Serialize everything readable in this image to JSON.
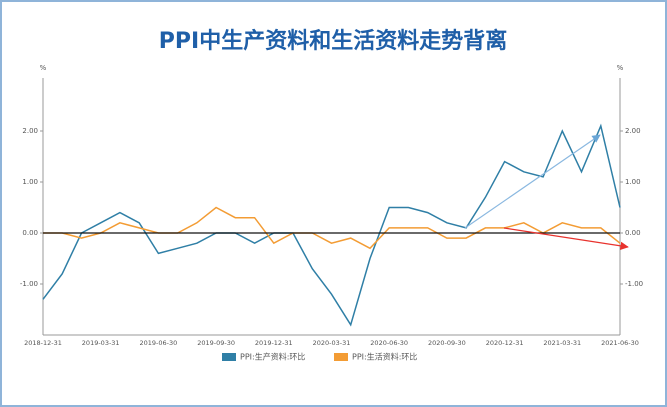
{
  "chart_data": {
    "type": "line",
    "title": "PPI中生产资料和生活资料走势背离",
    "y_axis_label": "%",
    "y2_axis_label": "%",
    "categories": [
      "2018-12-31",
      null,
      null,
      "2019-03-31",
      null,
      null,
      "2019-06-30",
      null,
      null,
      "2019-09-30",
      null,
      null,
      "2019-12-31",
      null,
      null,
      "2020-03-31",
      null,
      null,
      "2020-06-30",
      null,
      null,
      "2020-09-30",
      null,
      null,
      "2020-12-31",
      null,
      null,
      "2021-03-31",
      null,
      null,
      "2021-06-30"
    ],
    "series": [
      {
        "name": "PPI:生产资料:环比",
        "color": "#2f7fa6",
        "values": [
          -1.3,
          -0.8,
          0.0,
          0.2,
          0.4,
          0.2,
          -0.4,
          -0.3,
          -0.2,
          0.0,
          0.0,
          -0.2,
          0.0,
          0.0,
          -0.7,
          -1.2,
          -1.8,
          -0.5,
          0.5,
          0.5,
          0.4,
          0.2,
          0.1,
          0.7,
          1.4,
          1.2,
          1.1,
          2.0,
          1.2,
          2.1,
          0.5
        ]
      },
      {
        "name": "PPI:生活资料:环比",
        "color": "#f39c34",
        "values": [
          0.0,
          0.0,
          -0.1,
          0.0,
          0.2,
          0.1,
          0.0,
          0.0,
          0.2,
          0.5,
          0.3,
          0.3,
          -0.2,
          0.0,
          0.0,
          -0.2,
          -0.1,
          -0.3,
          0.1,
          0.1,
          0.1,
          -0.1,
          -0.1,
          0.1,
          0.1,
          0.2,
          0.0,
          0.2,
          0.1,
          0.1,
          -0.2
        ]
      }
    ],
    "ylim": [
      -2,
      3
    ],
    "yticks": [
      {
        "value": -1,
        "label": "-1.00"
      },
      {
        "value": 0,
        "label": "0.00"
      },
      {
        "value": 1,
        "label": "1.00"
      },
      {
        "value": 2,
        "label": "2.00"
      }
    ],
    "y2lim": [
      -2,
      3
    ],
    "y2ticks": [
      {
        "value": -1,
        "label": "-1.00"
      },
      {
        "value": 0,
        "label": "0.00"
      },
      {
        "value": 1,
        "label": "1.00"
      },
      {
        "value": 2,
        "label": "2.00"
      }
    ]
  }
}
